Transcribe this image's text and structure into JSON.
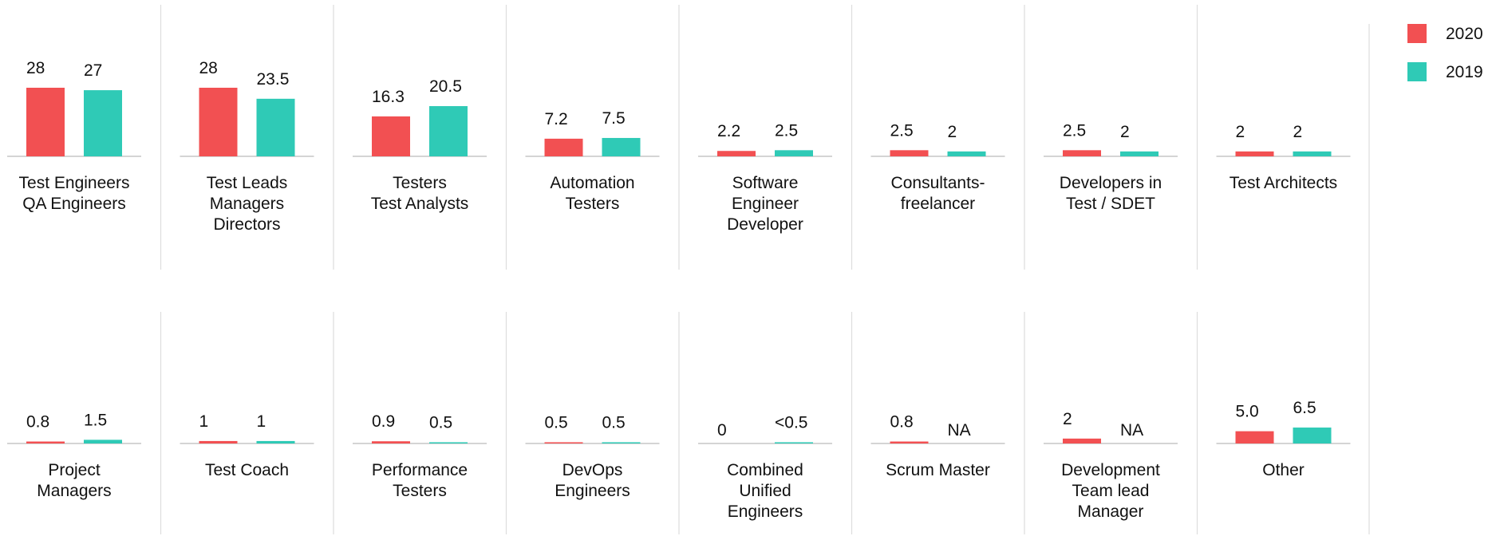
{
  "chart_data": {
    "type": "bar",
    "categories": [
      [
        "Test Engineers",
        "QA Engineers"
      ],
      [
        "Test Leads",
        "Managers",
        "Directors"
      ],
      [
        "Testers",
        "Test Analysts"
      ],
      [
        "Automation",
        "Testers"
      ],
      [
        "Software",
        "Engineer",
        "Developer"
      ],
      [
        "Consultants-",
        "freelancer"
      ],
      [
        "Developers in",
        "Test / SDET"
      ],
      [
        "Test Architects"
      ],
      [
        "Project",
        "Managers"
      ],
      [
        "Test Coach"
      ],
      [
        "Performance",
        "Testers"
      ],
      [
        "DevOps",
        "Engineers"
      ],
      [
        "Combined",
        "Unified",
        "Engineers"
      ],
      [
        "Scrum Master"
      ],
      [
        "Development",
        "Team lead",
        "Manager"
      ],
      [
        "Other"
      ]
    ],
    "series": [
      {
        "name": "2020",
        "color": "#f25052",
        "values": [
          28,
          28,
          16.3,
          7.2,
          2.2,
          2.5,
          2.5,
          2,
          0.8,
          1,
          0.9,
          0.5,
          0,
          0.8,
          2,
          5
        ],
        "value_labels": [
          "28",
          "28",
          "16.3",
          "7.2",
          "2.2",
          "2.5",
          "2.5",
          "2",
          "0.8",
          "1",
          "0.9",
          "0.5",
          "0",
          "0.8",
          "2",
          "5.0"
        ]
      },
      {
        "name": "2019",
        "color": "#2fcab6",
        "values": [
          27,
          23.5,
          20.5,
          7.5,
          2.5,
          2,
          2,
          2,
          1.5,
          1,
          0.5,
          0.5,
          0.5,
          null,
          null,
          6.5
        ],
        "value_labels": [
          "27",
          "23.5",
          "20.5",
          "7.5",
          "2.5",
          "2",
          "2",
          "2",
          "1.5",
          "1",
          "0.5",
          "0.5",
          "<0.5",
          "NA",
          "NA",
          "6.5"
        ]
      }
    ],
    "ylim": [
      0,
      28
    ],
    "legend": "right"
  }
}
